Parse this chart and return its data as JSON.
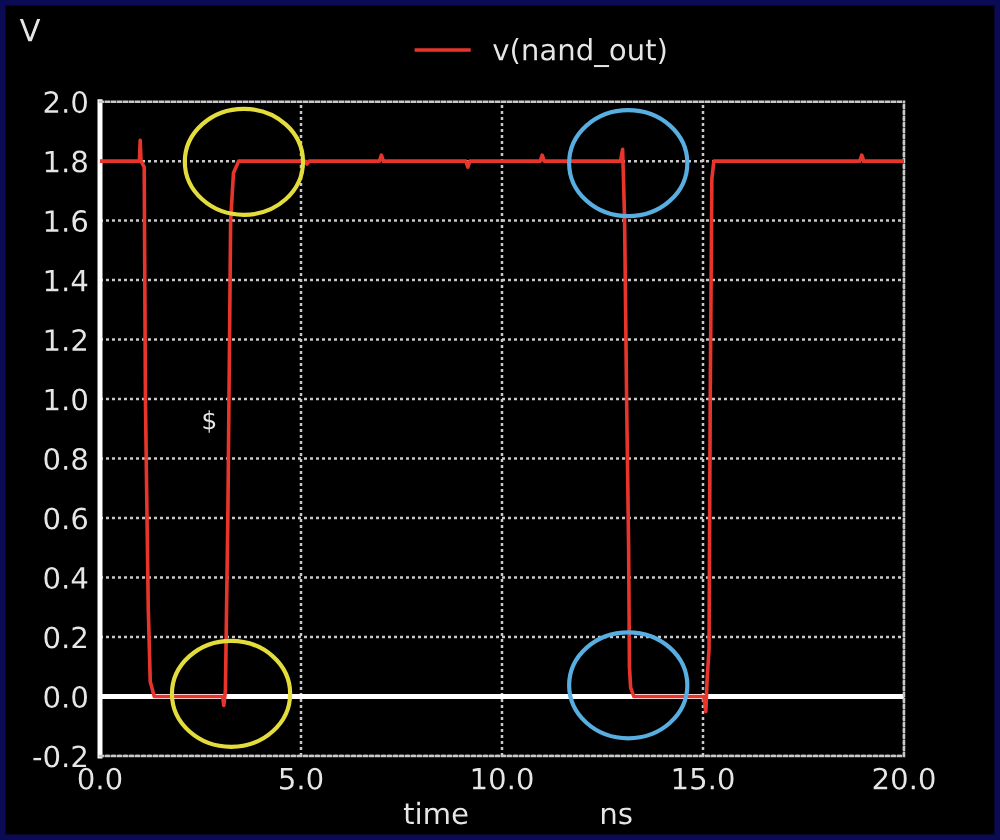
{
  "chart_data": {
    "type": "line",
    "x": [
      0,
      0.98,
      1.0,
      1.02,
      1.1,
      1.13,
      1.2,
      1.25,
      1.35,
      3.05,
      3.08,
      3.12,
      3.18,
      3.25,
      3.32,
      3.45,
      5.1,
      5.15,
      5.2,
      6.95,
      7.0,
      7.05,
      9.1,
      9.15,
      9.2,
      10.95,
      11.0,
      11.05,
      12.95,
      13.0,
      13.02,
      13.05,
      13.1,
      13.15,
      13.17,
      13.2,
      13.28,
      15.02,
      15.07,
      15.1,
      15.15,
      15.18,
      15.2,
      15.22,
      15.27,
      18.9,
      18.95,
      19.0,
      20
    ],
    "series": [
      {
        "name": "v(nand_out)",
        "color": "#e8352c",
        "values": [
          1.8,
          1.8,
          1.87,
          1.8,
          1.78,
          1.0,
          0.3,
          0.05,
          0.0,
          0.0,
          -0.03,
          0.02,
          0.6,
          1.6,
          1.76,
          1.8,
          1.8,
          1.79,
          1.8,
          1.8,
          1.82,
          1.8,
          1.8,
          1.78,
          1.8,
          1.8,
          1.82,
          1.8,
          1.8,
          1.84,
          1.75,
          1.6,
          1.0,
          0.5,
          0.1,
          0.03,
          0.0,
          0.0,
          -0.05,
          0.05,
          0.16,
          1.0,
          1.37,
          1.74,
          1.8,
          1.8,
          1.82,
          1.8,
          1.8
        ]
      }
    ],
    "xlabel": "time",
    "ylabel": "V",
    "annotations": [
      "ns",
      "$"
    ],
    "xlim": [
      0,
      20
    ],
    "ylim": [
      -0.2,
      2.0
    ],
    "xticks": [
      {
        "value": 0,
        "label": "0.0"
      },
      {
        "value": 5,
        "label": "5.0"
      },
      {
        "value": 10,
        "label": "10.0"
      },
      {
        "value": 15,
        "label": "15.0"
      },
      {
        "value": 20,
        "label": "20.0"
      }
    ],
    "yticks": [
      {
        "value": -0.2,
        "label": "-0.2"
      },
      {
        "value": 0,
        "label": "0.0"
      },
      {
        "value": 0.2,
        "label": "0.2"
      },
      {
        "value": 0.4,
        "label": "0.4"
      },
      {
        "value": 0.6,
        "label": "0.6"
      },
      {
        "value": 0.8,
        "label": "0.8"
      },
      {
        "value": 1.0,
        "label": "1.0"
      },
      {
        "value": 1.2,
        "label": "1.2"
      },
      {
        "value": 1.4,
        "label": "1.4"
      },
      {
        "value": 1.6,
        "label": "1.6"
      },
      {
        "value": 1.8,
        "label": "1.8"
      },
      {
        "value": 2.0,
        "label": "2.0"
      }
    ],
    "grid": true,
    "legend": "top",
    "ref_lines": [
      {
        "axis": "y",
        "value": 0,
        "color": "#ffffff"
      }
    ]
  }
}
